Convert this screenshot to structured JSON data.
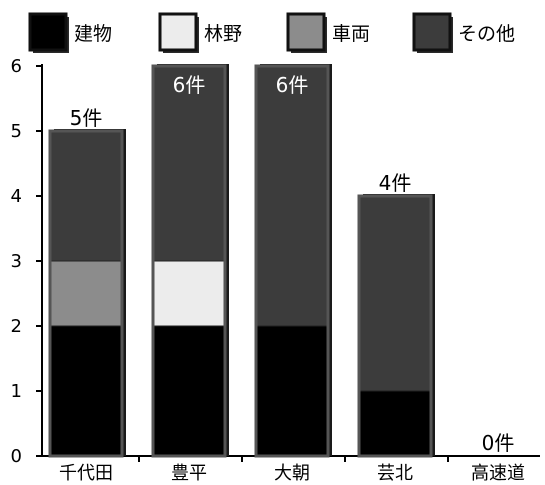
{
  "chart_data": {
    "type": "bar",
    "stacked": true,
    "categories": [
      "千代田",
      "豊平",
      "大朝",
      "芸北",
      "高速道"
    ],
    "series": [
      {
        "name": "建物",
        "values": [
          2,
          2,
          2,
          1,
          0
        ],
        "color": "#000000"
      },
      {
        "name": "林野",
        "values": [
          0,
          1,
          0,
          0,
          0
        ],
        "color": "#ececec"
      },
      {
        "name": "車両",
        "values": [
          1,
          0,
          0,
          0,
          0
        ],
        "color": "#8c8c8c"
      },
      {
        "name": "その他",
        "values": [
          2,
          3,
          4,
          3,
          0
        ],
        "color": "#3c3c3c"
      }
    ],
    "totals_labels": [
      "5件",
      "6件",
      "6件",
      "4件",
      "0件"
    ],
    "ylim": [
      0,
      6
    ],
    "yticks": [
      0,
      1,
      2,
      3,
      4,
      5,
      6
    ],
    "legend_position": "top",
    "grid": false
  }
}
